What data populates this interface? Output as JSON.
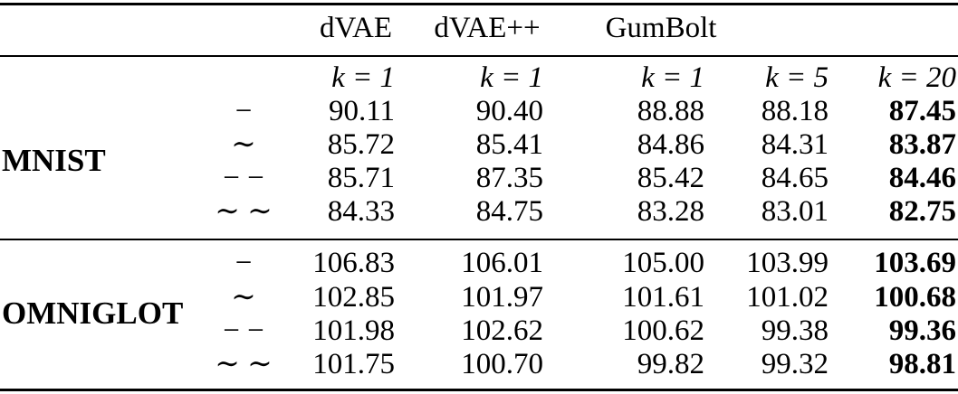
{
  "table": {
    "headers": [
      "dVAE",
      "dVAE++",
      "GumBolt"
    ],
    "k_labels": [
      "k = 1",
      "k = 1",
      "k = 1",
      "k = 5",
      "k = 20"
    ],
    "groups": [
      {
        "dataset": "MNIST",
        "rows": [
          {
            "symbol": "−",
            "values": [
              "90.11",
              "90.40",
              "88.88",
              "88.18",
              "87.45"
            ]
          },
          {
            "symbol": "∼",
            "values": [
              "85.72",
              "85.41",
              "84.86",
              "84.31",
              "83.87"
            ]
          },
          {
            "symbol": "− −",
            "values": [
              "85.71",
              "87.35",
              "85.42",
              "84.65",
              "84.46"
            ]
          },
          {
            "symbol": "∼ ∼",
            "values": [
              "84.33",
              "84.75",
              "83.28",
              "83.01",
              "82.75"
            ]
          }
        ]
      },
      {
        "dataset": "OMNIGLOT",
        "rows": [
          {
            "symbol": "−",
            "values": [
              "106.83",
              "106.01",
              "105.00",
              "103.99",
              "103.69"
            ]
          },
          {
            "symbol": "∼",
            "values": [
              "102.85",
              "101.97",
              "101.61",
              "101.02",
              "100.68"
            ]
          },
          {
            "symbol": "− −",
            "values": [
              "101.98",
              "102.62",
              "100.62",
              "99.38",
              "99.36"
            ]
          },
          {
            "symbol": "∼ ∼",
            "values": [
              "101.75",
              "100.70",
              "99.82",
              "99.32",
              "98.81"
            ]
          }
        ]
      }
    ],
    "bold_column": 4
  }
}
